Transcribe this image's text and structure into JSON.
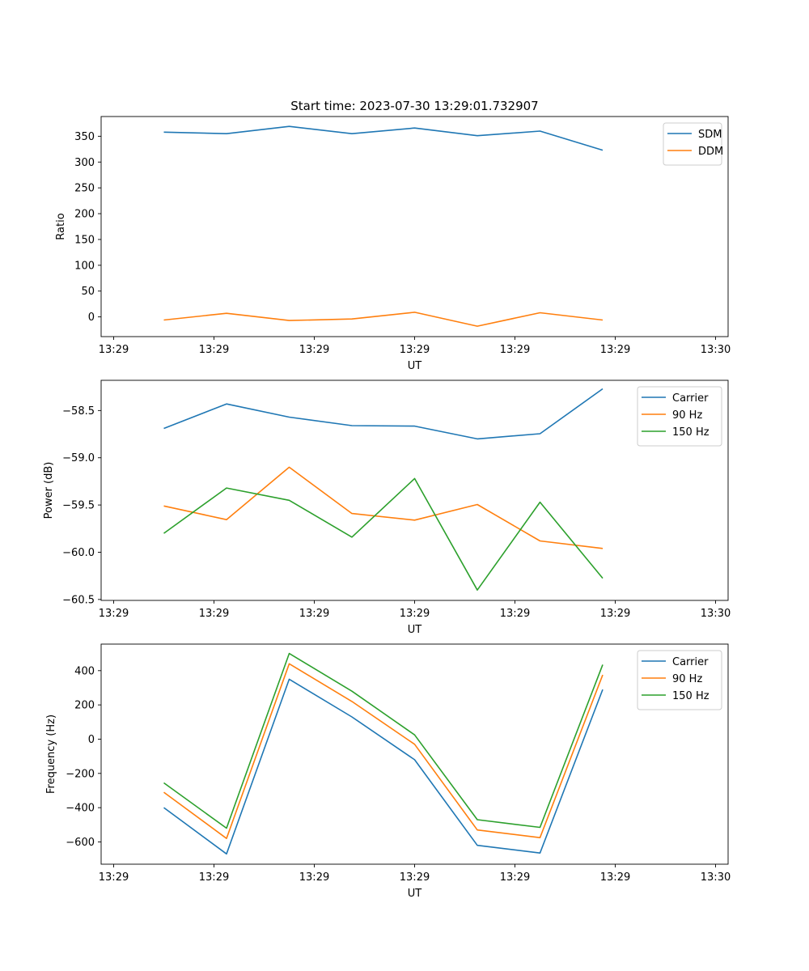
{
  "chart_data": [
    {
      "type": "line",
      "title": "Start time: 2023-07-30 13:29:01.732907",
      "xlabel": "UT",
      "ylabel": "Ratio",
      "xlim": [
        0,
        10
      ],
      "x_ticks": [
        {
          "pos": 0.2,
          "label": "13:29"
        },
        {
          "pos": 1.8,
          "label": "13:29"
        },
        {
          "pos": 3.4,
          "label": "13:29"
        },
        {
          "pos": 5.0,
          "label": "13:29"
        },
        {
          "pos": 6.6,
          "label": "13:29"
        },
        {
          "pos": 8.2,
          "label": "13:29"
        },
        {
          "pos": 9.8,
          "label": "13:30"
        }
      ],
      "ylim": [
        -38.2,
        388.2
      ],
      "y_ticks": [
        0,
        50,
        100,
        150,
        200,
        250,
        300,
        350
      ],
      "legend": "upper-right",
      "x": [
        1.0,
        2.0,
        3.0,
        4.0,
        5.0,
        6.0,
        7.0,
        8.0
      ],
      "series": [
        {
          "name": "SDM",
          "color": "#1f77b4",
          "values": [
            358,
            355,
            369,
            355,
            366,
            351,
            360,
            323
          ]
        },
        {
          "name": "DDM",
          "color": "#ff7f0e",
          "values": [
            -6,
            7,
            -7,
            -4,
            9,
            -18,
            8,
            -6
          ]
        }
      ]
    },
    {
      "type": "line",
      "title": "",
      "xlabel": "UT",
      "ylabel": "Power (dB)",
      "xlim": [
        0,
        10
      ],
      "x_ticks": [
        {
          "pos": 0.2,
          "label": "13:29"
        },
        {
          "pos": 1.8,
          "label": "13:29"
        },
        {
          "pos": 3.4,
          "label": "13:29"
        },
        {
          "pos": 5.0,
          "label": "13:29"
        },
        {
          "pos": 6.6,
          "label": "13:29"
        },
        {
          "pos": 8.2,
          "label": "13:29"
        },
        {
          "pos": 9.8,
          "label": "13:30"
        }
      ],
      "ylim": [
        -60.51,
        -58.18
      ],
      "y_ticks": [
        -58.5,
        -59.0,
        -59.5,
        -60.0,
        -60.5
      ],
      "y_tick_labels": [
        "−58.5",
        "−59.0",
        "−59.5",
        "−60.0",
        "−60.5"
      ],
      "legend": "upper-right",
      "x": [
        1.0,
        2.0,
        3.0,
        4.0,
        5.0,
        6.0,
        7.0,
        8.0
      ],
      "series": [
        {
          "name": "Carrier",
          "color": "#1f77b4",
          "values": [
            -58.69,
            -58.43,
            -58.57,
            -58.66,
            -58.665,
            -58.8,
            -58.745,
            -58.27
          ]
        },
        {
          "name": "90 Hz",
          "color": "#ff7f0e",
          "values": [
            -59.51,
            -59.655,
            -59.1,
            -59.59,
            -59.66,
            -59.495,
            -59.88,
            -59.96
          ]
        },
        {
          "name": "150 Hz",
          "color": "#2ca02c",
          "values": [
            -59.8,
            -59.32,
            -59.45,
            -59.84,
            -59.22,
            -60.4,
            -59.47,
            -60.275
          ]
        }
      ]
    },
    {
      "type": "line",
      "title": "",
      "xlabel": "UT",
      "ylabel": "Frequency (Hz)",
      "xlim": [
        0,
        10
      ],
      "x_ticks": [
        {
          "pos": 0.2,
          "label": "13:29"
        },
        {
          "pos": 1.8,
          "label": "13:29"
        },
        {
          "pos": 3.4,
          "label": "13:29"
        },
        {
          "pos": 5.0,
          "label": "13:29"
        },
        {
          "pos": 6.6,
          "label": "13:29"
        },
        {
          "pos": 8.2,
          "label": "13:29"
        },
        {
          "pos": 9.8,
          "label": "13:30"
        }
      ],
      "ylim": [
        -730,
        555
      ],
      "y_ticks": [
        400,
        200,
        0,
        -200,
        -400,
        -600
      ],
      "y_tick_labels": [
        "400",
        "200",
        "0",
        "−200",
        "−400",
        "−600"
      ],
      "legend": "upper-right",
      "x": [
        1.0,
        2.0,
        3.0,
        4.0,
        5.0,
        6.0,
        7.0,
        8.0
      ],
      "series": [
        {
          "name": "Carrier",
          "color": "#1f77b4",
          "values": [
            -400,
            -670,
            350,
            130,
            -120,
            -620,
            -665,
            290
          ]
        },
        {
          "name": "90 Hz",
          "color": "#ff7f0e",
          "values": [
            -310,
            -580,
            440,
            220,
            -30,
            -530,
            -575,
            375
          ]
        },
        {
          "name": "150 Hz",
          "color": "#2ca02c",
          "values": [
            -255,
            -520,
            500,
            280,
            25,
            -470,
            -515,
            435
          ]
        }
      ]
    }
  ]
}
